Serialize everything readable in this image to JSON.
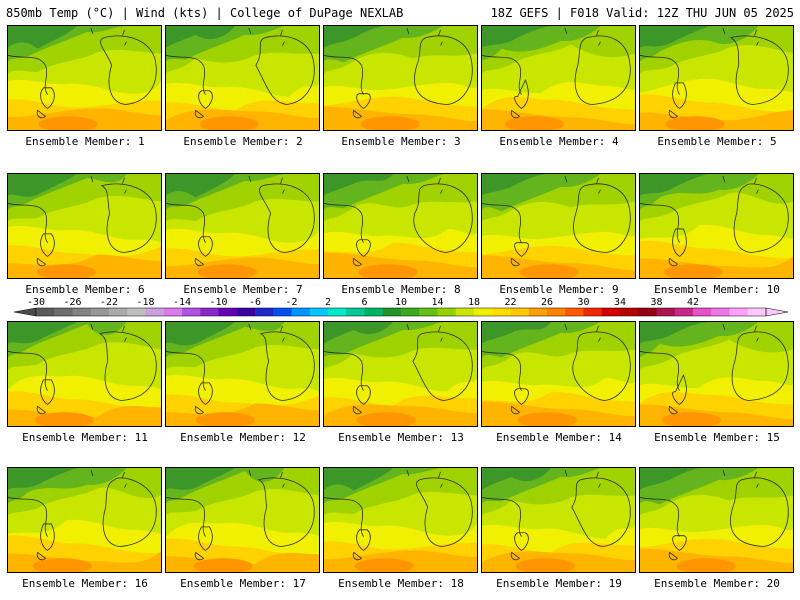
{
  "header": {
    "left": "850mb Temp (°C) | Wind (kts) | College of DuPage NEXLAB",
    "right": "18Z GEFS | F018 Valid: 12Z THU JUN 05 2025"
  },
  "members": [
    "Ensemble Member: 1",
    "Ensemble Member: 2",
    "Ensemble Member: 3",
    "Ensemble Member: 4",
    "Ensemble Member: 5",
    "Ensemble Member: 6",
    "Ensemble Member: 7",
    "Ensemble Member: 8",
    "Ensemble Member: 9",
    "Ensemble Member: 10",
    "Ensemble Member: 11",
    "Ensemble Member: 12",
    "Ensemble Member: 13",
    "Ensemble Member: 14",
    "Ensemble Member: 15",
    "Ensemble Member: 16",
    "Ensemble Member: 17",
    "Ensemble Member: 18",
    "Ensemble Member: 19",
    "Ensemble Member: 20"
  ],
  "colorbar": {
    "ticks": [
      "-30",
      "-26",
      "-22",
      "-18",
      "-14",
      "-10",
      "-6",
      "-2",
      "2",
      "6",
      "10",
      "14",
      "18",
      "22",
      "26",
      "30",
      "34",
      "38",
      "42"
    ],
    "colors": [
      "#5a5a5a",
      "#6e6e6e",
      "#828282",
      "#969696",
      "#aaaaaa",
      "#bebebe",
      "#c8a0dc",
      "#dc78f0",
      "#b450e6",
      "#8c28c8",
      "#6400b4",
      "#3c00a0",
      "#1e28c8",
      "#0050f0",
      "#0096ff",
      "#00c8ff",
      "#00e6c8",
      "#00c896",
      "#00b464",
      "#1e9628",
      "#3caa1e",
      "#64be14",
      "#96d200",
      "#c8e600",
      "#f0f000",
      "#ffdc00",
      "#ffc800",
      "#ffa000",
      "#ff8200",
      "#ff5a00",
      "#f02800",
      "#d20000",
      "#b40000",
      "#960014",
      "#aa1450",
      "#c8288c",
      "#e650c8",
      "#f078e6",
      "#ffa0ff",
      "#ffc8ff"
    ]
  },
  "map_colors": {
    "dark_green": "#3c9628",
    "green": "#64b41e",
    "light_green": "#a0d200",
    "yellow_green": "#c8e600",
    "yellow": "#f0f000",
    "gold": "#ffd200",
    "orange": "#ffb400",
    "dark_orange": "#ff9600"
  }
}
